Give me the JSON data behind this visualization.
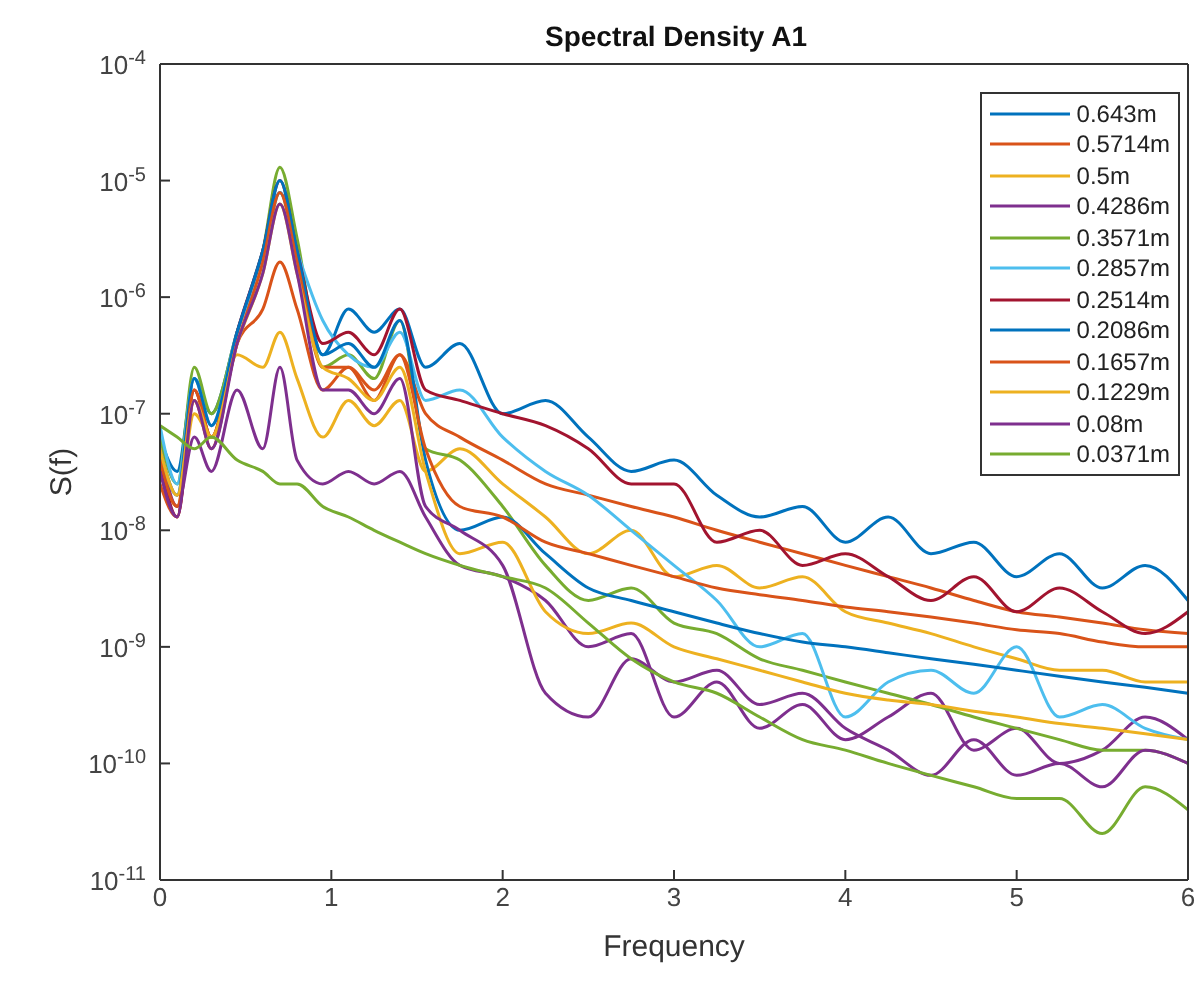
{
  "chart_data": {
    "type": "line",
    "title": "Spectral Density A1",
    "xlabel": "Frequency",
    "ylabel": "S(f)",
    "log": "y",
    "legend": "top right",
    "xlim": [
      0,
      6
    ],
    "xticks": [
      0,
      1,
      2,
      3,
      4,
      5,
      6
    ],
    "ylim": [
      1e-11,
      0.0001
    ],
    "yticks": [
      {
        "value": 1e-11,
        "label": "10$^{-11}$"
      },
      {
        "value": 1e-10,
        "label": "10$^{-10}$"
      },
      {
        "value": 1e-09,
        "label": "10$^{-9}$"
      },
      {
        "value": 1e-08,
        "label": "10$^{-8}$"
      },
      {
        "value": 1e-07,
        "label": "10$^{-7}$"
      },
      {
        "value": 1e-06,
        "label": "10$^{-6}$"
      },
      {
        "value": 1e-05,
        "label": "10$^{-5}$"
      },
      {
        "value": 0.0001,
        "label": "10$^{-4}$"
      }
    ],
    "x": [
      0,
      0.1,
      0.2,
      0.3,
      0.45,
      0.6,
      0.7,
      0.8,
      0.95,
      1.1,
      1.25,
      1.4,
      1.55,
      1.75,
      2,
      2.25,
      2.5,
      2.75,
      3,
      3.25,
      3.5,
      3.75,
      4,
      4.25,
      4.5,
      4.75,
      5,
      5.25,
      5.5,
      5.75,
      6
    ],
    "series": [
      {
        "name": "0.643m",
        "color": "#0072bd",
        "values": [
          6.3e-08,
          3.2e-08,
          2e-07,
          1e-07,
          5e-07,
          2.5e-06,
          7.9e-06,
          2.5e-06,
          3.2e-07,
          7.9e-07,
          5e-07,
          7.9e-07,
          2.5e-07,
          4e-07,
          1e-07,
          1.3e-07,
          6.3e-08,
          3.2e-08,
          4e-08,
          2e-08,
          1.3e-08,
          1.6e-08,
          7.9e-09,
          1.3e-08,
          6.3e-09,
          7.9e-09,
          4e-09,
          6.3e-09,
          3.2e-09,
          5e-09,
          2.5e-09
        ]
      },
      {
        "name": "0.5714m",
        "color": "#d95319",
        "values": [
          2.5e-08,
          1.3e-08,
          1.3e-07,
          5e-08,
          4e-07,
          7.9e-07,
          2e-06,
          7.9e-07,
          1.6e-07,
          2.5e-07,
          1.3e-07,
          3.2e-07,
          1e-07,
          6.3e-08,
          4e-08,
          2.5e-08,
          2e-08,
          1.6e-08,
          1.3e-08,
          1e-08,
          7.9e-09,
          6.3e-09,
          5e-09,
          4e-09,
          3.2e-09,
          2.5e-09,
          2e-09,
          1.8e-09,
          1.6e-09,
          1.4e-09,
          1.3e-09
        ]
      },
      {
        "name": "0.5m",
        "color": "#edb120",
        "values": [
          4e-08,
          1.6e-08,
          1e-07,
          6.3e-08,
          3.2e-07,
          2.5e-07,
          5e-07,
          2e-07,
          6.3e-08,
          1.3e-07,
          7.9e-08,
          1.3e-07,
          3.2e-08,
          5e-08,
          2.5e-08,
          1.3e-08,
          6.3e-09,
          1e-08,
          4e-09,
          5e-09,
          3.2e-09,
          4e-09,
          2e-09,
          1.6e-09,
          1.3e-09,
          1e-09,
          7.9e-10,
          6.3e-10,
          6.3e-10,
          5e-10,
          5e-10
        ]
      },
      {
        "name": "0.4286m",
        "color": "#7e2f8e",
        "values": [
          5e-08,
          1.6e-08,
          6.3e-08,
          3.2e-08,
          1.6e-07,
          5e-08,
          2.5e-07,
          4e-08,
          2.5e-08,
          3.2e-08,
          2.5e-08,
          3.2e-08,
          1.3e-08,
          5e-09,
          4e-09,
          2.5e-09,
          1e-09,
          1.3e-09,
          2.5e-10,
          5e-10,
          2e-10,
          3.2e-10,
          1.6e-10,
          2.5e-10,
          4e-10,
          1.3e-10,
          2e-10,
          1e-10,
          1.3e-10,
          2.5e-10,
          1.6e-10
        ]
      },
      {
        "name": "0.3571m",
        "color": "#77ac30",
        "values": [
          6.3e-08,
          2.5e-08,
          2.5e-07,
          1e-07,
          5e-07,
          2.5e-06,
          1.3e-05,
          3.2e-06,
          2.5e-07,
          3.2e-07,
          2e-07,
          6.3e-07,
          5e-08,
          4e-08,
          1.6e-08,
          5e-09,
          2.5e-09,
          3.2e-09,
          1.6e-09,
          1.3e-09,
          7.9e-10,
          6.3e-10,
          5e-10,
          4e-10,
          3.2e-10,
          2.5e-10,
          2e-10,
          1.6e-10,
          1.3e-10,
          1.3e-10,
          1e-10
        ]
      },
      {
        "name": "0.2857m",
        "color": "#4dbeee",
        "values": [
          7.9e-08,
          2.5e-08,
          2e-07,
          7.9e-08,
          5e-07,
          2e-06,
          7.9e-06,
          2.5e-06,
          6.3e-07,
          3.2e-07,
          2.5e-07,
          5e-07,
          1.3e-07,
          1.6e-07,
          6.3e-08,
          3.2e-08,
          2e-08,
          1e-08,
          5e-09,
          2.5e-09,
          1e-09,
          1.3e-09,
          2.5e-10,
          5e-10,
          6.3e-10,
          4e-10,
          1e-09,
          2.5e-10,
          3.2e-10,
          2e-10,
          1.6e-10
        ]
      },
      {
        "name": "0.2514m",
        "color": "#a2142f",
        "values": [
          4e-08,
          1.3e-08,
          1.6e-07,
          6.3e-08,
          5e-07,
          2.5e-06,
          1e-05,
          2.5e-06,
          4e-07,
          5e-07,
          3.2e-07,
          7.9e-07,
          1.6e-07,
          1.3e-07,
          1e-07,
          7.9e-08,
          5e-08,
          2.5e-08,
          2.5e-08,
          7.9e-09,
          1e-08,
          5e-09,
          6.3e-09,
          4e-09,
          2.5e-09,
          4e-09,
          2e-09,
          3.2e-09,
          2e-09,
          1.3e-09,
          2e-09
        ]
      },
      {
        "name": "0.2086m",
        "color": "#0072bd",
        "values": [
          5e-08,
          2e-08,
          2e-07,
          7.9e-08,
          5e-07,
          2.5e-06,
          1e-05,
          2.5e-06,
          3.2e-07,
          4e-07,
          2.5e-07,
          6.3e-07,
          4e-08,
          1e-08,
          1.3e-08,
          6.3e-09,
          3.2e-09,
          2.5e-09,
          2e-09,
          1.6e-09,
          1.3e-09,
          1.1e-09,
          1e-09,
          8.9e-10,
          7.9e-10,
          7.1e-10,
          6.3e-10,
          5.6e-10,
          5e-10,
          4.5e-10,
          4e-10
        ]
      },
      {
        "name": "0.1657m",
        "color": "#d95319",
        "values": [
          4e-08,
          1.6e-08,
          1.6e-07,
          6.3e-08,
          4e-07,
          2e-06,
          7.9e-06,
          2e-06,
          2.5e-07,
          2.5e-07,
          1.6e-07,
          3.2e-07,
          5e-08,
          1.6e-08,
          1.3e-08,
          7.9e-09,
          6.3e-09,
          5e-09,
          4e-09,
          3.2e-09,
          2.8e-09,
          2.5e-09,
          2.2e-09,
          2e-09,
          1.8e-09,
          1.6e-09,
          1.4e-09,
          1.3e-09,
          1.1e-09,
          1e-09,
          1e-09
        ]
      },
      {
        "name": "0.1229m",
        "color": "#edb120",
        "values": [
          5e-08,
          2e-08,
          1.3e-07,
          6.3e-08,
          4e-07,
          1.6e-06,
          6.3e-06,
          1.6e-06,
          2.5e-07,
          2e-07,
          1.3e-07,
          2.5e-07,
          3.2e-08,
          6.3e-09,
          7.9e-09,
          2e-09,
          1.3e-09,
          1.6e-09,
          1e-09,
          7.9e-10,
          6.3e-10,
          5e-10,
          4e-10,
          3.5e-10,
          3.2e-10,
          2.8e-10,
          2.5e-10,
          2.2e-10,
          2e-10,
          1.8e-10,
          1.6e-10
        ]
      },
      {
        "name": "0.08m",
        "color": "#7e2f8e",
        "values": [
          3.2e-08,
          1.3e-08,
          1.3e-07,
          5e-08,
          4e-07,
          1.6e-06,
          6.3e-06,
          1.6e-06,
          1.6e-07,
          1.6e-07,
          1e-07,
          2e-07,
          1.6e-08,
          1e-08,
          5e-09,
          4e-10,
          2.5e-10,
          7.9e-10,
          5e-10,
          6.3e-10,
          3.2e-10,
          4e-10,
          2e-10,
          1.3e-10,
          7.9e-11,
          1.6e-10,
          7.9e-11,
          1e-10,
          6.3e-11,
          1.3e-10,
          1e-10
        ]
      },
      {
        "name": "0.0371m",
        "color": "#77ac30",
        "values": [
          7.9e-08,
          6.3e-08,
          5e-08,
          6.3e-08,
          4e-08,
          3.2e-08,
          2.5e-08,
          2.5e-08,
          1.6e-08,
          1.3e-08,
          1e-08,
          7.9e-09,
          6.3e-09,
          5e-09,
          4e-09,
          3.2e-09,
          1.6e-09,
          7.9e-10,
          5e-10,
          4e-10,
          2.5e-10,
          1.6e-10,
          1.3e-10,
          1e-10,
          7.9e-11,
          6.3e-11,
          5e-11,
          5e-11,
          2.5e-11,
          6.3e-11,
          4e-11
        ]
      }
    ]
  }
}
